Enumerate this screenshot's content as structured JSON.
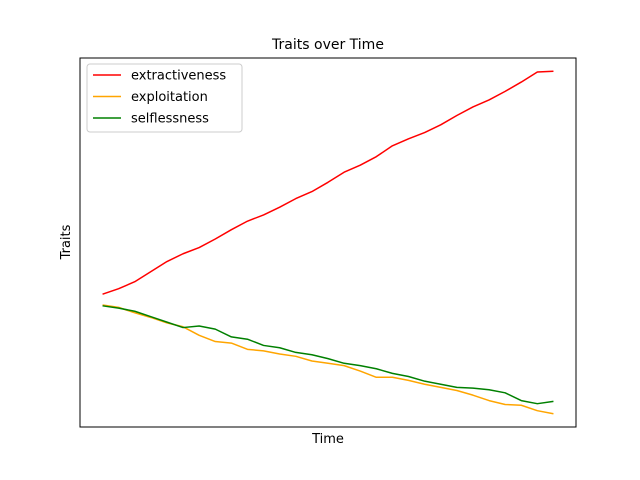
{
  "chart_data": {
    "type": "line",
    "title": "Traits over Time",
    "xlabel": "Time",
    "ylabel": "Traits",
    "xticks": [],
    "yticks": [],
    "grid": false,
    "legend_position": "upper left",
    "x": [
      0,
      1,
      2,
      3,
      4,
      5,
      6,
      7,
      8,
      9,
      10,
      11,
      12,
      13,
      14,
      15,
      16,
      17,
      18,
      19,
      20,
      21,
      22,
      23,
      24,
      25,
      26,
      27,
      28
    ],
    "series": [
      {
        "name": "extractiveness",
        "color": "#ff0000",
        "values": [
          0.0,
          0.07,
          0.16,
          0.29,
          0.42,
          0.52,
          0.6,
          0.71,
          0.83,
          0.94,
          1.02,
          1.12,
          1.23,
          1.32,
          1.44,
          1.57,
          1.66,
          1.77,
          1.91,
          2.0,
          2.08,
          2.18,
          2.3,
          2.41,
          2.5,
          2.61,
          2.73,
          2.86,
          2.87
        ]
      },
      {
        "name": "exploitation",
        "color": "#ffa500",
        "values": [
          -0.14,
          -0.17,
          -0.24,
          -0.3,
          -0.37,
          -0.42,
          -0.53,
          -0.61,
          -0.63,
          -0.71,
          -0.73,
          -0.77,
          -0.8,
          -0.86,
          -0.89,
          -0.92,
          -0.99,
          -1.07,
          -1.07,
          -1.11,
          -1.16,
          -1.2,
          -1.24,
          -1.3,
          -1.37,
          -1.42,
          -1.43,
          -1.5,
          -1.54
        ]
      },
      {
        "name": "selflessness",
        "color": "#008000",
        "values": [
          -0.15,
          -0.18,
          -0.22,
          -0.29,
          -0.36,
          -0.43,
          -0.41,
          -0.45,
          -0.55,
          -0.58,
          -0.66,
          -0.69,
          -0.75,
          -0.78,
          -0.83,
          -0.89,
          -0.92,
          -0.96,
          -1.02,
          -1.06,
          -1.12,
          -1.16,
          -1.2,
          -1.21,
          -1.23,
          -1.27,
          -1.37,
          -1.41,
          -1.38
        ]
      }
    ],
    "ylim": [
      -1.71,
      3.04
    ],
    "xlim": [
      -1.4,
      29.4
    ]
  }
}
